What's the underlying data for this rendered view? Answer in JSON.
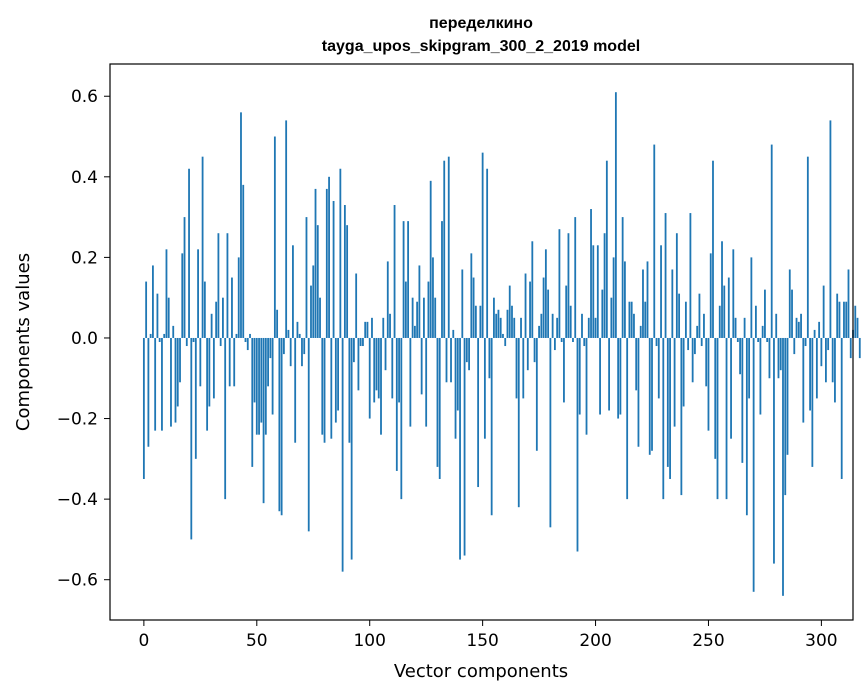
{
  "chart_data": {
    "type": "bar",
    "title": "переделкино",
    "subtitle": "tayga_upos_skipgram_300_2_2019 model",
    "xlabel": "Vector components",
    "ylabel": "Components values",
    "xlim": [
      -15,
      314
    ],
    "ylim": [
      -0.7,
      0.68
    ],
    "xticks": [
      0,
      50,
      100,
      150,
      200,
      250,
      300
    ],
    "yticks": [
      -0.6,
      -0.4,
      -0.2,
      0.0,
      0.2,
      0.4,
      0.6
    ],
    "xtick_labels": [
      "0",
      "50",
      "100",
      "150",
      "200",
      "250",
      "300"
    ],
    "ytick_labels": [
      "−0.6",
      "−0.4",
      "−0.2",
      "0.0",
      "0.2",
      "0.4",
      "0.6"
    ],
    "bar_color": "#1f77b4",
    "values": [
      -0.35,
      0.14,
      -0.27,
      0.01,
      0.18,
      -0.23,
      0.11,
      -0.01,
      -0.23,
      0.01,
      0.22,
      0.1,
      -0.22,
      0.03,
      -0.21,
      -0.17,
      -0.11,
      0.21,
      0.3,
      -0.02,
      0.42,
      -0.5,
      -0.01,
      -0.3,
      0.22,
      -0.12,
      0.45,
      0.14,
      -0.23,
      -0.17,
      0.06,
      -0.15,
      0.09,
      0.26,
      -0.02,
      0.1,
      -0.4,
      0.26,
      -0.12,
      0.15,
      -0.12,
      0.01,
      0.2,
      0.56,
      0.38,
      -0.01,
      -0.03,
      0.01,
      -0.32,
      -0.16,
      -0.24,
      -0.24,
      -0.21,
      -0.41,
      -0.24,
      -0.12,
      -0.05,
      -0.19,
      0.5,
      0.07,
      -0.43,
      -0.44,
      -0.04,
      0.54,
      0.02,
      -0.07,
      0.23,
      -0.26,
      0.04,
      0.01,
      -0.07,
      -0.04,
      0.3,
      -0.48,
      0.13,
      0.18,
      0.37,
      0.28,
      0.1,
      -0.24,
      -0.26,
      0.37,
      0.4,
      -0.25,
      0.34,
      -0.21,
      -0.18,
      0.42,
      -0.58,
      0.33,
      0.28,
      -0.26,
      -0.55,
      -0.06,
      0.16,
      -0.13,
      -0.02,
      -0.02,
      0.04,
      0.04,
      -0.2,
      0.05,
      -0.16,
      -0.13,
      -0.15,
      -0.24,
      0.05,
      -0.08,
      0.19,
      0.06,
      -0.15,
      0.33,
      -0.33,
      -0.16,
      -0.4,
      0.29,
      0.14,
      0.29,
      -0.22,
      0.1,
      0.03,
      0.09,
      0.18,
      -0.14,
      0.1,
      -0.22,
      0.14,
      0.39,
      0.2,
      0.1,
      -0.32,
      -0.35,
      0.29,
      0.44,
      -0.11,
      0.45,
      -0.11,
      0.02,
      -0.25,
      -0.18,
      -0.55,
      0.17,
      -0.54,
      -0.06,
      -0.08,
      0.21,
      0.15,
      0.08,
      -0.37,
      0.08,
      0.46,
      -0.25,
      0.42,
      -0.1,
      -0.44,
      0.1,
      0.06,
      0.07,
      0.05,
      0.01,
      -0.02,
      0.07,
      0.13,
      0.08,
      0.05,
      -0.15,
      -0.42,
      0.05,
      -0.15,
      0.16,
      -0.08,
      0.14,
      0.24,
      -0.06,
      -0.28,
      0.03,
      0.06,
      0.15,
      0.22,
      0.12,
      -0.47,
      0.06,
      -0.03,
      0.05,
      0.27,
      -0.01,
      -0.16,
      0.13,
      0.26,
      0.08,
      -0.01,
      0.3,
      -0.53,
      -0.19,
      0.06,
      -0.02,
      -0.24,
      0.05,
      0.32,
      0.23,
      0.05,
      0.23,
      -0.19,
      0.12,
      0.26,
      0.44,
      -0.18,
      0.1,
      0.2,
      0.61,
      -0.2,
      -0.19,
      0.3,
      0.19,
      -0.4,
      0.09,
      0.09,
      0.06,
      -0.13,
      -0.27,
      0.03,
      0.17,
      0.09,
      0.19,
      -0.29,
      -0.28,
      0.48,
      -0.02,
      -0.15,
      0.23,
      -0.4,
      0.31,
      -0.32,
      -0.35,
      0.17,
      -0.22,
      0.26,
      0.11,
      -0.39,
      -0.17,
      0.09,
      -0.03,
      0.31,
      -0.11,
      -0.04,
      0.03,
      0.11,
      -0.02,
      0.06,
      -0.12,
      -0.23,
      0.21,
      0.44,
      -0.3,
      -0.4,
      0.08,
      0.24,
      0.13,
      -0.4,
      0.15,
      -0.25,
      0.22,
      0.05,
      -0.01,
      -0.09,
      -0.31,
      0.05,
      -0.44,
      -0.15,
      0.2,
      -0.63,
      0.08,
      -0.01,
      -0.19,
      0.03,
      0.12,
      -0.01,
      -0.1,
      0.48,
      -0.56,
      0.06,
      -0.1,
      -0.08,
      -0.64,
      -0.39,
      -0.29,
      0.17,
      0.12,
      -0.04,
      0.05,
      0.04,
      0.06,
      -0.21,
      -0.02,
      0.45,
      -0.18,
      -0.32,
      0.02,
      -0.15,
      0.04,
      -0.07,
      0.13,
      -0.11,
      -0.03,
      0.54,
      -0.11,
      -0.16,
      0.11,
      0.09,
      -0.35,
      0.09,
      0.09,
      0.17,
      -0.05,
      0.02,
      0.08,
      0.05,
      -0.05
    ]
  }
}
